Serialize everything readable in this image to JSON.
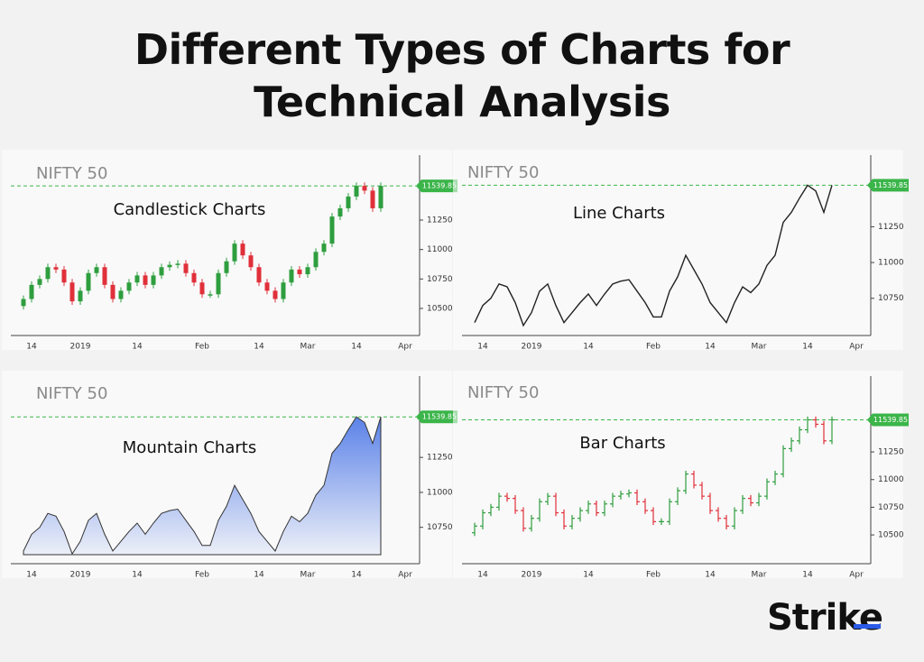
{
  "header": {
    "title": "Different Types of Charts for Technical Analysis",
    "logo": "Strike"
  },
  "chart_data": [
    {
      "type": "candlestick",
      "label": "NIFTY 50",
      "title": "Candlestick Charts",
      "categories": [
        null,
        "14",
        null,
        null,
        null,
        null,
        null,
        "2019",
        null,
        null,
        null,
        null,
        null,
        null,
        "14",
        null,
        null,
        null,
        null,
        null,
        null,
        null,
        "Feb",
        null,
        null,
        null,
        null,
        null,
        null,
        "14",
        null,
        null,
        null,
        null,
        null,
        "Mar",
        null,
        null,
        null,
        null,
        null,
        "14",
        null,
        null,
        null,
        null,
        null,
        "Apr"
      ],
      "open": [
        10520,
        10580,
        10700,
        10750,
        10850,
        10830,
        10720,
        10560,
        10650,
        10800,
        10850,
        10700,
        10580,
        10650,
        10720,
        10780,
        10700,
        10780,
        10850,
        10870,
        10880,
        10800,
        10720,
        10620,
        10620,
        10800,
        10900,
        11050,
        10950,
        10850,
        10720,
        10650,
        10580,
        10720,
        10830,
        10790,
        10850,
        10980,
        11050,
        11280,
        11350,
        11450,
        11540,
        11500,
        11350,
        null,
        null,
        null
      ],
      "high": [
        10610,
        10730,
        10780,
        10880,
        10880,
        10860,
        10750,
        10680,
        10830,
        10880,
        10880,
        10730,
        10680,
        10750,
        10810,
        10810,
        10810,
        10880,
        10900,
        10910,
        10910,
        10830,
        10750,
        10650,
        10830,
        10930,
        11080,
        11080,
        10980,
        10880,
        10750,
        10680,
        10750,
        10860,
        10860,
        10880,
        11010,
        11080,
        11310,
        11380,
        11480,
        11570,
        11570,
        11530,
        11570,
        null,
        null,
        null
      ],
      "low": [
        10490,
        10550,
        10670,
        10720,
        10800,
        10690,
        10530,
        10530,
        10620,
        10770,
        10670,
        10550,
        10550,
        10620,
        10690,
        10670,
        10670,
        10750,
        10820,
        10840,
        10770,
        10690,
        10590,
        10590,
        10590,
        10770,
        10870,
        10920,
        10820,
        10690,
        10620,
        10550,
        10550,
        10690,
        10760,
        10760,
        10820,
        10950,
        11020,
        11250,
        11320,
        11420,
        11470,
        11320,
        11320,
        null,
        null,
        null
      ],
      "close": [
        10580,
        10700,
        10750,
        10850,
        10830,
        10720,
        10560,
        10650,
        10800,
        10850,
        10700,
        10580,
        10650,
        10720,
        10780,
        10700,
        10780,
        10850,
        10870,
        10880,
        10800,
        10720,
        10620,
        10620,
        10800,
        10900,
        11050,
        10950,
        10850,
        10720,
        10650,
        10580,
        10720,
        10830,
        10790,
        10850,
        10980,
        11050,
        11280,
        11350,
        11450,
        11540,
        11500,
        11350,
        11540,
        null,
        null,
        null
      ],
      "up_color": "#2e9e3e",
      "down_color": "#e0303a",
      "ylim": [
        10270,
        11740
      ],
      "yticks": [
        10500,
        10750,
        11000,
        11250
      ],
      "last_value": 11539.85,
      "last_color": "#3bb54a"
    },
    {
      "type": "line",
      "label": "NIFTY 50",
      "title": "Line Charts",
      "categories": [
        null,
        "14",
        null,
        null,
        null,
        null,
        null,
        "2019",
        null,
        null,
        null,
        null,
        null,
        null,
        "14",
        null,
        null,
        null,
        null,
        null,
        null,
        null,
        "Feb",
        null,
        null,
        null,
        null,
        null,
        null,
        "14",
        null,
        null,
        null,
        null,
        null,
        "Mar",
        null,
        null,
        null,
        null,
        null,
        "14",
        null,
        null,
        null,
        null,
        null,
        "Apr"
      ],
      "values": [
        10580,
        10700,
        10750,
        10850,
        10830,
        10720,
        10560,
        10650,
        10800,
        10850,
        10700,
        10580,
        10650,
        10720,
        10780,
        10700,
        10780,
        10850,
        10870,
        10880,
        10800,
        10720,
        10620,
        10620,
        10800,
        10900,
        11050,
        10950,
        10850,
        10720,
        10650,
        10580,
        10720,
        10830,
        10790,
        10850,
        10980,
        11050,
        11280,
        11350,
        11450,
        11540,
        11500,
        11350,
        11540,
        null,
        null,
        null
      ],
      "color": "#222222",
      "ylim": [
        10490,
        11700
      ],
      "yticks": [
        10750,
        11000,
        11250
      ],
      "last_value": 11539.85,
      "last_color": "#3bb54a"
    },
    {
      "type": "area",
      "label": "NIFTY 50",
      "title": "Mountain Charts",
      "categories": [
        null,
        "14",
        null,
        null,
        null,
        null,
        null,
        "2019",
        null,
        null,
        null,
        null,
        null,
        null,
        "14",
        null,
        null,
        null,
        null,
        null,
        null,
        null,
        "Feb",
        null,
        null,
        null,
        null,
        null,
        null,
        "14",
        null,
        null,
        null,
        null,
        null,
        "Mar",
        null,
        null,
        null,
        null,
        null,
        "14",
        null,
        null,
        null,
        null,
        null,
        "Apr"
      ],
      "values": [
        10580,
        10700,
        10750,
        10850,
        10830,
        10720,
        10560,
        10650,
        10800,
        10850,
        10700,
        10580,
        10650,
        10720,
        10780,
        10700,
        10780,
        10850,
        10870,
        10880,
        10800,
        10720,
        10620,
        10620,
        10800,
        10900,
        11050,
        10950,
        10850,
        10720,
        10650,
        10580,
        10720,
        10830,
        10790,
        10850,
        10980,
        11050,
        11280,
        11350,
        11450,
        11540,
        11500,
        11350,
        11540,
        null,
        null,
        null
      ],
      "color": "#5b82e8",
      "ylim": [
        10490,
        11780
      ],
      "yticks": [
        10750,
        11000,
        11250
      ],
      "last_value": 11539.85,
      "last_color": "#3bb54a"
    },
    {
      "type": "ohlc",
      "label": "NIFTY 50",
      "title": "Bar Charts",
      "categories": [
        null,
        "14",
        null,
        null,
        null,
        null,
        null,
        "2019",
        null,
        null,
        null,
        null,
        null,
        null,
        "14",
        null,
        null,
        null,
        null,
        null,
        null,
        null,
        "Feb",
        null,
        null,
        null,
        null,
        null,
        null,
        "14",
        null,
        null,
        null,
        null,
        null,
        "Mar",
        null,
        null,
        null,
        null,
        null,
        "14",
        null,
        null,
        null,
        null,
        null,
        "Apr"
      ],
      "open": [
        10520,
        10580,
        10700,
        10750,
        10850,
        10830,
        10720,
        10560,
        10650,
        10800,
        10850,
        10700,
        10580,
        10650,
        10720,
        10780,
        10700,
        10780,
        10850,
        10870,
        10880,
        10800,
        10720,
        10620,
        10620,
        10800,
        10900,
        11050,
        10950,
        10850,
        10720,
        10650,
        10580,
        10720,
        10830,
        10790,
        10850,
        10980,
        11050,
        11280,
        11350,
        11450,
        11540,
        11500,
        11350,
        null,
        null,
        null
      ],
      "high": [
        10610,
        10730,
        10780,
        10880,
        10880,
        10860,
        10750,
        10680,
        10830,
        10880,
        10880,
        10730,
        10680,
        10750,
        10810,
        10810,
        10810,
        10880,
        10900,
        10910,
        10910,
        10830,
        10750,
        10650,
        10830,
        10930,
        11080,
        11080,
        10980,
        10880,
        10750,
        10680,
        10750,
        10860,
        10860,
        10880,
        11010,
        11080,
        11310,
        11380,
        11480,
        11570,
        11570,
        11530,
        11570,
        null,
        null,
        null
      ],
      "low": [
        10490,
        10550,
        10670,
        10720,
        10800,
        10690,
        10530,
        10530,
        10620,
        10770,
        10670,
        10550,
        10550,
        10620,
        10690,
        10670,
        10670,
        10750,
        10820,
        10840,
        10770,
        10690,
        10590,
        10590,
        10590,
        10770,
        10870,
        10920,
        10820,
        10690,
        10620,
        10550,
        10550,
        10690,
        10760,
        10760,
        10820,
        10950,
        11020,
        11250,
        11320,
        11420,
        11470,
        11320,
        11320,
        null,
        null,
        null
      ],
      "close": [
        10580,
        10700,
        10750,
        10850,
        10830,
        10720,
        10560,
        10650,
        10800,
        10850,
        10700,
        10580,
        10650,
        10720,
        10780,
        10700,
        10780,
        10850,
        10870,
        10880,
        10800,
        10720,
        10620,
        10620,
        10800,
        10900,
        11050,
        10950,
        10850,
        10720,
        10650,
        10580,
        10720,
        10830,
        10790,
        10850,
        10980,
        11050,
        11280,
        11350,
        11450,
        11540,
        11500,
        11350,
        11540,
        null,
        null,
        null
      ],
      "up_color": "#2e9e3e",
      "down_color": "#e0303a",
      "ylim": [
        10240,
        11870
      ],
      "yticks": [
        10500,
        10750,
        11000,
        11250
      ],
      "last_value": 11539.85,
      "last_color": "#3bb54a"
    }
  ]
}
